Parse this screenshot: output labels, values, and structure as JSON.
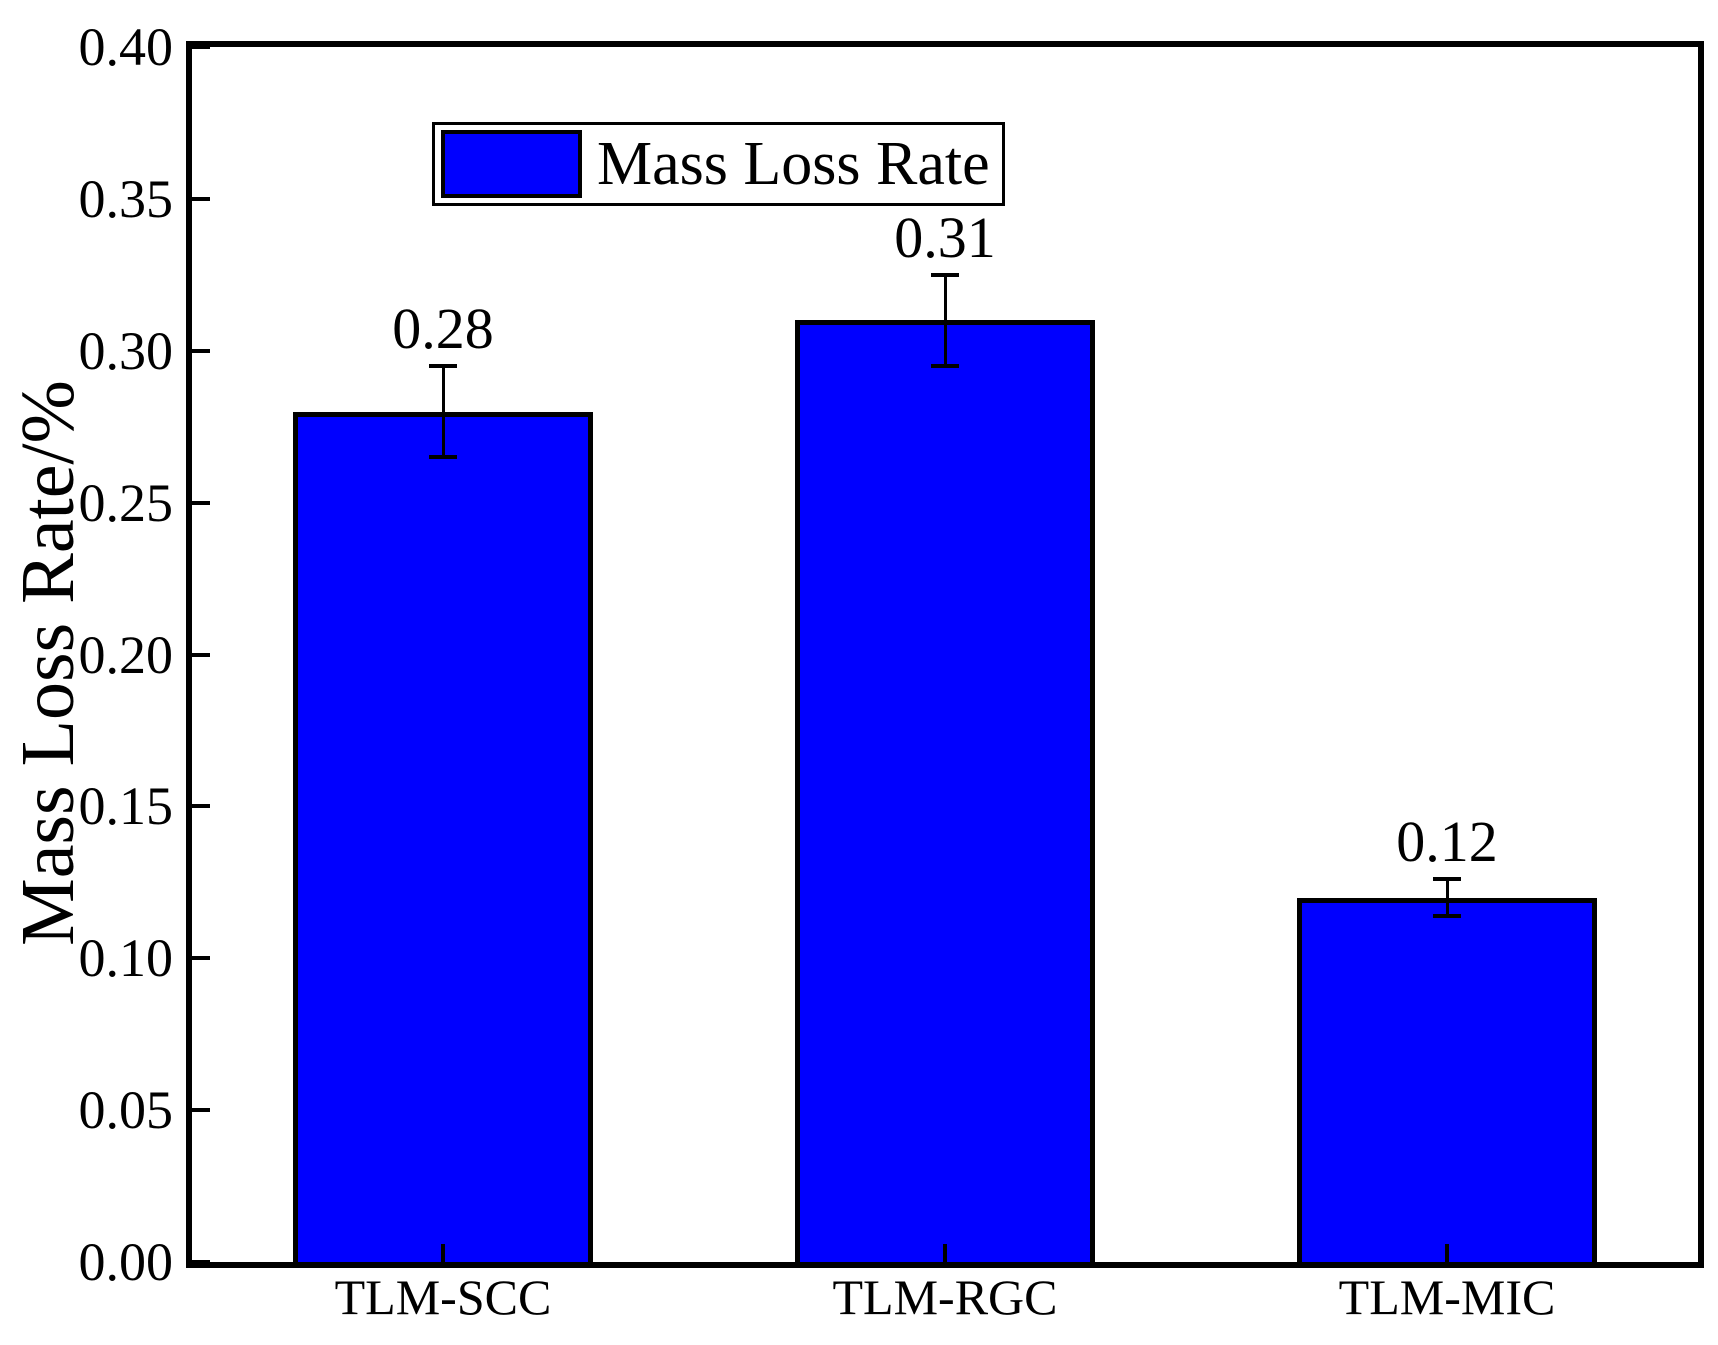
{
  "chart_data": {
    "type": "bar",
    "title": "",
    "categories": [
      "TLM-SCC",
      "TLM-RGC",
      "TLM-MIC"
    ],
    "values": [
      0.28,
      0.31,
      0.12
    ],
    "errors": [
      0.015,
      0.015,
      0.006
    ],
    "bar_labels": [
      "0.28",
      "0.31",
      "0.12"
    ],
    "xlabel": "",
    "ylabel": "Mass Loss Rate/%",
    "ylim": [
      0.0,
      0.4
    ],
    "yticks": [
      0.4,
      0.35,
      0.3,
      0.25,
      0.2,
      0.15,
      0.1,
      0.05,
      0.0
    ],
    "ytick_labels": [
      "0.40",
      "0.35",
      "0.30",
      "0.25",
      "0.20",
      "0.15",
      "0.10",
      "0.05",
      "0.00"
    ],
    "grid": false,
    "legend": {
      "position": "top-left",
      "entries": [
        {
          "label": "Mass Loss Rate",
          "color": "#0000ff"
        }
      ]
    },
    "colors": {
      "bar_fill": "#0000ff",
      "bar_border": "#000000",
      "axis": "#000000",
      "background": "#ffffff"
    }
  }
}
